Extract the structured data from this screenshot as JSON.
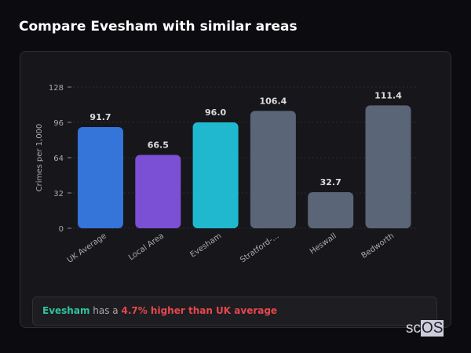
{
  "title": "Compare Evesham with similar areas",
  "chart_data": {
    "type": "bar",
    "categories": [
      "UK Average",
      "Local Area",
      "Evesham",
      "Stratford-...",
      "Heswall",
      "Bedworth"
    ],
    "values": [
      91.7,
      66.5,
      96.0,
      106.4,
      32.7,
      111.4
    ],
    "labels": [
      "91.7",
      "66.5",
      "96.0",
      "106.4",
      "32.7",
      "111.4"
    ],
    "colors": [
      "#3574d9",
      "#7b50d4",
      "#1fb8cf",
      "#5a6577",
      "#5a6577",
      "#5a6577"
    ],
    "ylabel": "Crimes per 1,000",
    "yticks": [
      0,
      32,
      64,
      96,
      128
    ],
    "ylim": [
      0,
      128
    ],
    "grid": true
  },
  "insight": {
    "area": "Evesham",
    "middle": " has a ",
    "result": "4.7% higher than UK average"
  },
  "logo": {
    "text1": "sc",
    "text2": "OS"
  }
}
